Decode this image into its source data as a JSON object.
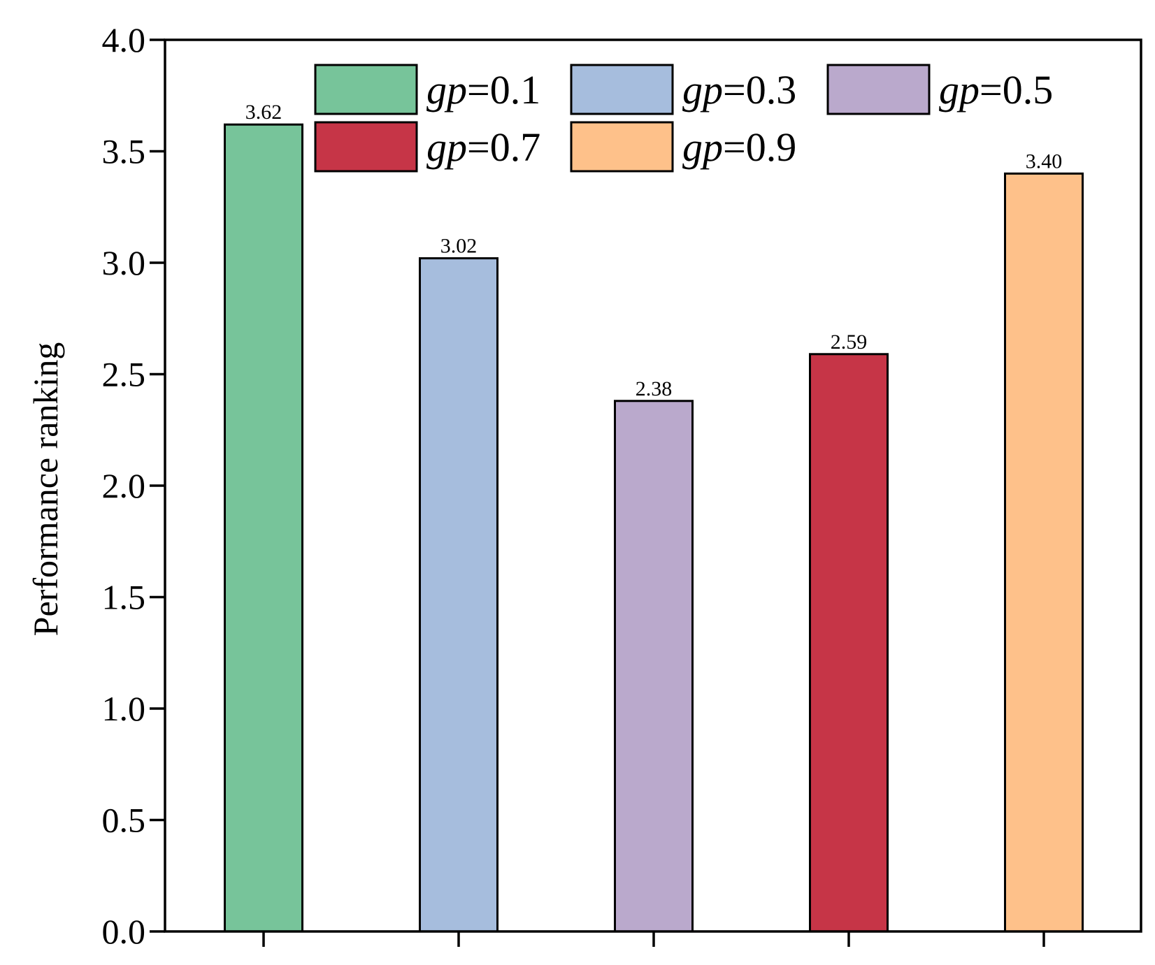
{
  "chart_data": {
    "type": "bar",
    "title": "",
    "xlabel": "",
    "ylabel": "Performance ranking",
    "ylim": [
      0,
      4.0
    ],
    "yticks": [
      "0.0",
      "0.5",
      "1.0",
      "1.5",
      "2.0",
      "2.5",
      "3.0",
      "3.5",
      "4.0"
    ],
    "categories": [
      "gp=0.1",
      "gp=0.3",
      "gp=0.5",
      "gp=0.7",
      "gp=0.9"
    ],
    "values": [
      3.62,
      3.02,
      2.38,
      2.59,
      3.4
    ],
    "value_labels": [
      "3.62",
      "3.02",
      "2.38",
      "2.59",
      "3.40"
    ],
    "colors": [
      "#77c49a",
      "#a6bddd",
      "#baa9cc",
      "#c63547",
      "#fec18a"
    ],
    "legend": {
      "placement": "top-center",
      "entries": [
        {
          "italic": "gp",
          "text": "=0.1"
        },
        {
          "italic": "gp",
          "text": "=0.3"
        },
        {
          "italic": "gp",
          "text": "=0.5"
        },
        {
          "italic": "gp",
          "text": "=0.7"
        },
        {
          "italic": "gp",
          "text": "=0.9"
        }
      ]
    },
    "grid": false
  }
}
